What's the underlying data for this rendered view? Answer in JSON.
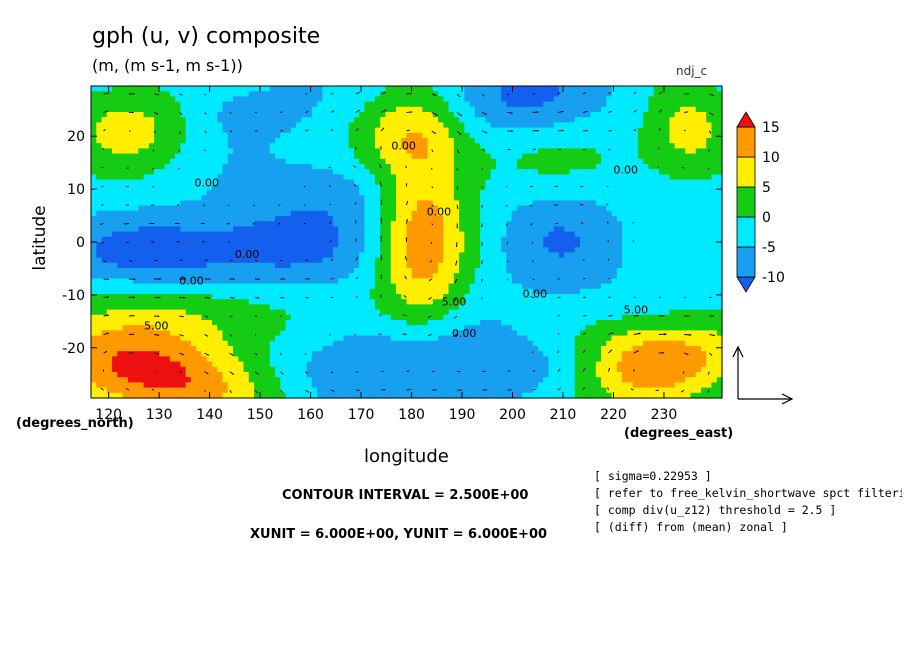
{
  "chart_data": {
    "type": "heatmap",
    "title": "gph (u, v) composite",
    "units_label": "(m, (m s-1, m s-1))",
    "dataset_label": "ndj_c",
    "xlabel": "longitude",
    "ylabel": "latitude",
    "x_axis_unit": "(degrees_east)",
    "y_axis_unit": "(degrees_north)",
    "x_ticks": [
      120,
      130,
      140,
      150,
      160,
      170,
      180,
      190,
      200,
      210,
      220,
      230
    ],
    "y_ticks": [
      -20,
      -10,
      0,
      10,
      20
    ],
    "xlim": [
      116.5,
      241.5
    ],
    "ylim": [
      -29.5,
      29.5
    ],
    "colorbar_ticks": [
      15,
      10,
      5,
      0,
      -5,
      -10
    ],
    "colorbar_levels": [
      -12.5,
      -10,
      -5,
      0,
      5,
      10,
      15,
      17.5
    ],
    "colors": [
      "#1460ee",
      "#18a0f0",
      "#00eaff",
      "#14cc14",
      "#ffee00",
      "#ff9900",
      "#ee1010"
    ],
    "contour_labels": [
      {
        "text": "0.00",
        "lon": 137,
        "lat": 10.5
      },
      {
        "text": "0.00",
        "lon": 176,
        "lat": 17.5
      },
      {
        "text": "0.00",
        "lon": 183,
        "lat": 5
      },
      {
        "text": "0.00",
        "lon": 145,
        "lat": -3
      },
      {
        "text": "0.00",
        "lon": 134,
        "lat": -8
      },
      {
        "text": "0.00",
        "lon": 202,
        "lat": -10.5
      },
      {
        "text": "0.00",
        "lon": 220,
        "lat": 13
      },
      {
        "text": "5.00",
        "lon": 127,
        "lat": -16.5
      },
      {
        "text": "5.00",
        "lon": 186,
        "lat": -12
      },
      {
        "text": "5.00",
        "lon": 222,
        "lat": -13.5
      },
      {
        "text": "0.00",
        "lon": 188,
        "lat": -18
      }
    ],
    "field_blobs": [
      {
        "lon": 128,
        "lat": -25,
        "rx": 16,
        "ry": 6.5,
        "amp": 20,
        "rot": -8
      },
      {
        "lon": 227,
        "lat": -23,
        "rx": 13,
        "ry": 5.5,
        "amp": 20,
        "rot": 8
      },
      {
        "lon": 182,
        "lat": 0,
        "rx": 6.5,
        "ry": 13,
        "amp": 16
      },
      {
        "lon": 180,
        "lat": 21,
        "rx": 8,
        "ry": 6,
        "amp": 10
      },
      {
        "lon": 124,
        "lat": 22,
        "rx": 9,
        "ry": 6,
        "amp": 10
      },
      {
        "lon": 235,
        "lat": 21,
        "rx": 6,
        "ry": 6,
        "amp": 10
      },
      {
        "lon": 150,
        "lat": -1,
        "rx": 15,
        "ry": 5.5,
        "amp": -9
      },
      {
        "lon": 127,
        "lat": -2,
        "rx": 11,
        "ry": 4,
        "amp": -7
      },
      {
        "lon": 210,
        "lat": 1,
        "rx": 9,
        "ry": 8,
        "amp": -6
      },
      {
        "lon": 200,
        "lat": 27,
        "rx": 12,
        "ry": 5,
        "amp": -8
      },
      {
        "lon": 180,
        "lat": -23,
        "rx": 17,
        "ry": 5.5,
        "amp": -9
      },
      {
        "lon": 213,
        "lat": -24,
        "rx": 10,
        "ry": 4,
        "amp": -6
      },
      {
        "lon": 165,
        "lat": 10,
        "rx": 11,
        "ry": 5,
        "amp": -5
      },
      {
        "lon": 148,
        "lat": 25,
        "rx": 10,
        "ry": 4,
        "amp": -4
      },
      {
        "lon": 140,
        "lat": -14,
        "rx": 14,
        "ry": 5,
        "amp": 7
      },
      {
        "lon": 210,
        "lat": 15,
        "rx": 18,
        "ry": 6,
        "amp": 4
      }
    ],
    "vector_reference": {
      "u": 6.0,
      "v": 6.0
    }
  },
  "contour_interval": "CONTOUR INTERVAL = 2.500E+00",
  "xy_unit": "XUNIT = 6.000E+00, YUNIT = 6.000E+00",
  "notes": [
    "[ sigma=0.22953 ]",
    "[ refer to free_kelvin_shortwave spct filteri",
    "[ comp div(u_z12) threshold = 2.5 ]",
    "[ (diff) from (mean) zonal ]"
  ]
}
